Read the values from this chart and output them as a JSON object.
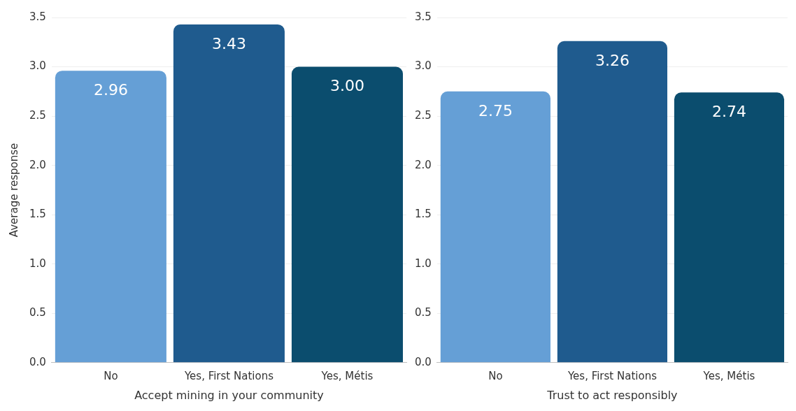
{
  "chart_data": [
    {
      "type": "bar",
      "xlabel": "Accept mining in your community",
      "ylabel": "Average response",
      "categories": [
        "No",
        "Yes, First Nations",
        "Yes, Métis"
      ],
      "values": [
        2.96,
        3.43,
        3.0
      ],
      "value_labels": [
        "2.96",
        "3.43",
        "3.00"
      ],
      "colors": [
        "#659fd6",
        "#1f5b8e",
        "#0b4d6e"
      ],
      "ylim": [
        0,
        3.5
      ],
      "yticks": [
        {
          "value": 0,
          "label": "0.0"
        },
        {
          "value": 0.5,
          "label": "0.5"
        },
        {
          "value": 1,
          "label": "1.0"
        },
        {
          "value": 1.5,
          "label": "1.5"
        },
        {
          "value": 2,
          "label": "2.0"
        },
        {
          "value": 2.5,
          "label": "2.5"
        },
        {
          "value": 3,
          "label": "3.0"
        },
        {
          "value": 3.5,
          "label": "3.5"
        }
      ],
      "grid": "y"
    },
    {
      "type": "bar",
      "xlabel": "Trust to act responsibly",
      "categories": [
        "No",
        "Yes, First Nations",
        "Yes, Métis"
      ],
      "values": [
        2.75,
        3.26,
        2.74
      ],
      "value_labels": [
        "2.75",
        "3.26",
        "2.74"
      ],
      "colors": [
        "#659fd6",
        "#1f5b8e",
        "#0b4d6e"
      ],
      "ylim": [
        0,
        3.5
      ],
      "yticks": [
        {
          "value": 0,
          "label": "0.0"
        },
        {
          "value": 0.5,
          "label": "0.5"
        },
        {
          "value": 1,
          "label": "1.0"
        },
        {
          "value": 1.5,
          "label": "1.5"
        },
        {
          "value": 2,
          "label": "2.0"
        },
        {
          "value": 2.5,
          "label": "2.5"
        },
        {
          "value": 3,
          "label": "3.0"
        },
        {
          "value": 3.5,
          "label": "3.5"
        }
      ],
      "grid": "y"
    }
  ]
}
